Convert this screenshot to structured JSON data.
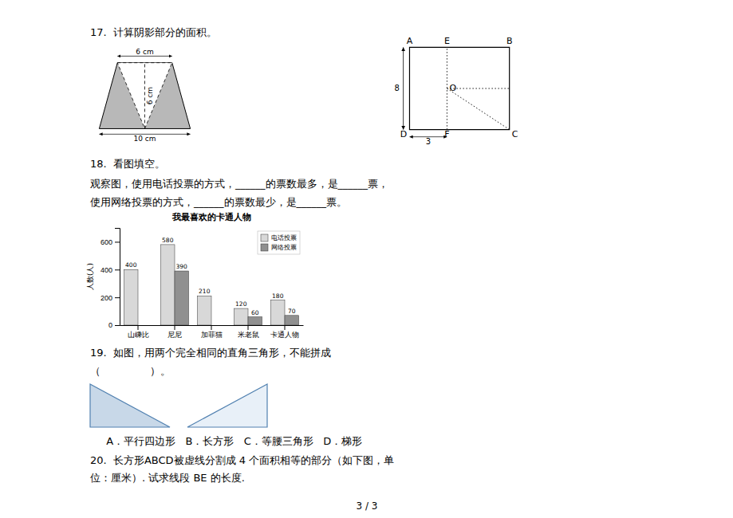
{
  "chart_data": {
    "type": "bar",
    "title": "我最喜欢的卡通人物",
    "y_label": "人数(人)",
    "categories": [
      "山嵊比",
      "尼尼",
      "加菲猫",
      "米老鼠",
      "卡通人物"
    ],
    "series": [
      {
        "name": "电话投票",
        "color": "#d8d8d8",
        "values": [
          400,
          580,
          210,
          120,
          180
        ]
      },
      {
        "name": "网络投票",
        "color": "#909090",
        "values": [
          0,
          390,
          0,
          60,
          70
        ],
        "value_labels": [
          null,
          "390",
          null,
          "60",
          "70"
        ]
      }
    ],
    "ylim": [
      0,
      700
    ],
    "yticks": [
      0,
      200,
      400,
      600
    ],
    "grid": false,
    "legend": "upper right",
    "data_labels": true,
    "annotations": [
      "17.  计算阴影部分的面积。",
      "6 cm",
      "6 cm",
      "10 cm",
      "8",
      "3",
      "A",
      "E",
      "B",
      "D",
      "F",
      "C",
      "O",
      "18.  看图填空。",
      "观察图，使用电话投票的方式，______的票数最多，是______票，",
      "使用网络投票的方式，______的票数最少，是______票。",
      "19.  如图，用两个完全相同的直角三角形，不能拼成",
      "（               ）。",
      "  A．平行四边形   B．长方形   C．等腰三角形   D．梯形",
      "20.  长方形ABCD被虚线分割成 4 个面积相等的部分（如下图，单",
      "位：厘米）. 试求线段 BE 的长度.",
      "3 / 3"
    ]
  }
}
